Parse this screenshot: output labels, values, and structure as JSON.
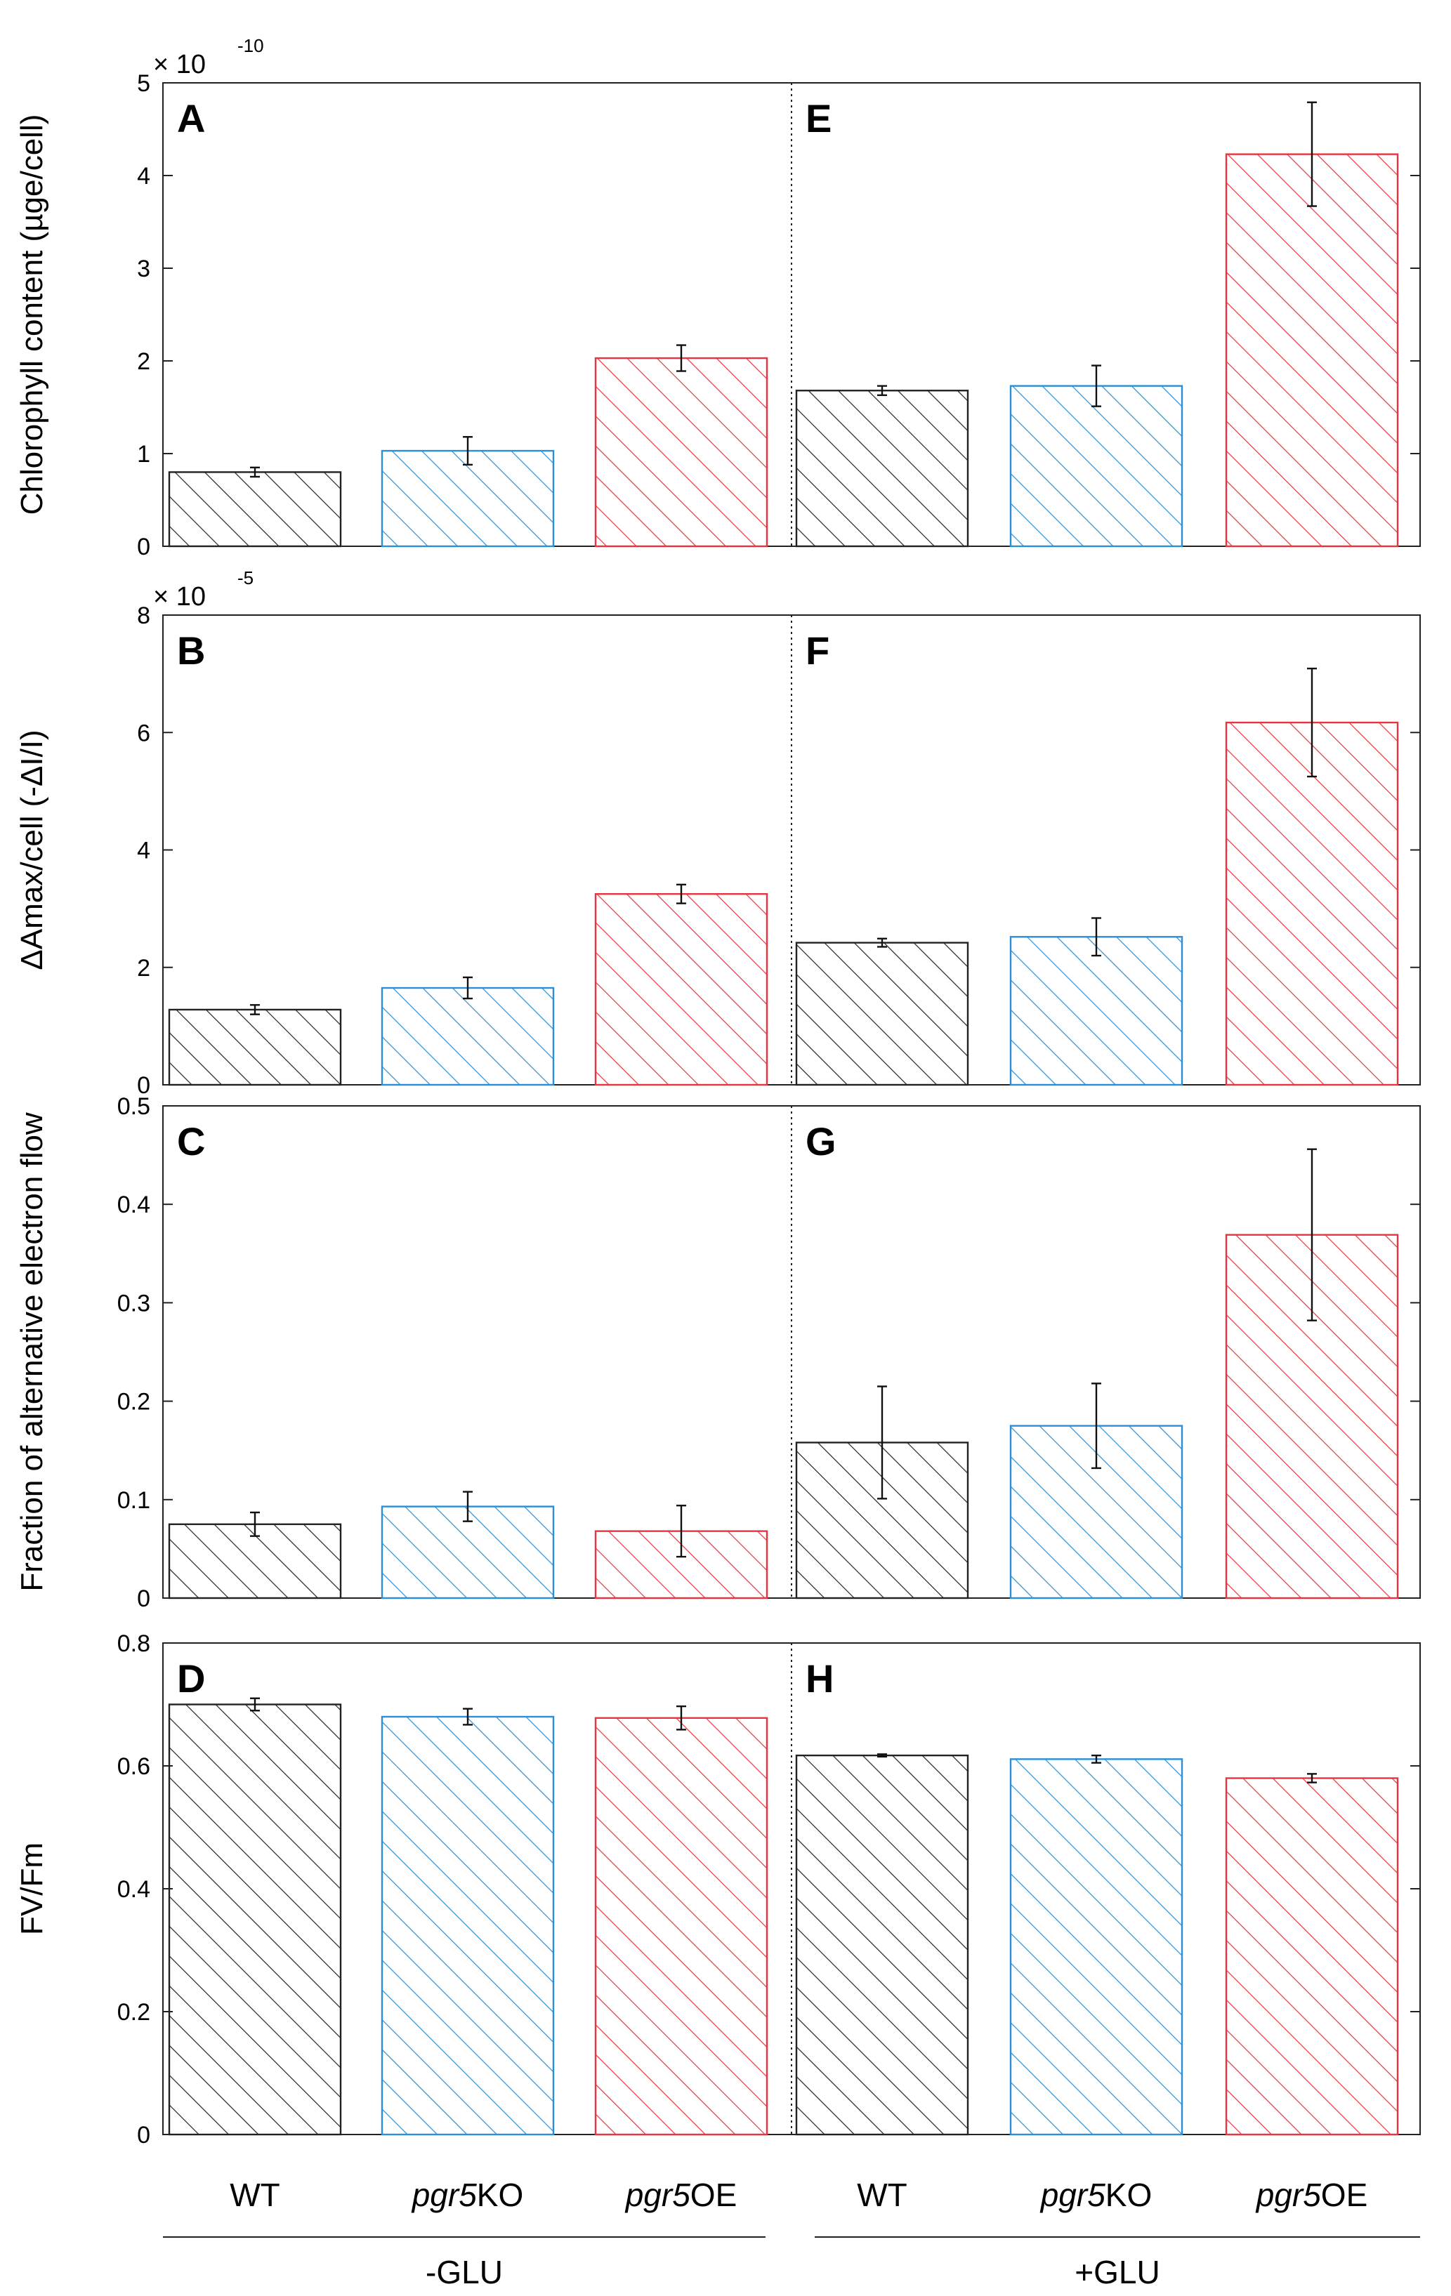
{
  "colors": {
    "WT": "#222222",
    "pgr5KO": "#2a8fd6",
    "pgr5OE": "#e8343f"
  },
  "categories": [
    {
      "prefix": "",
      "italic": "",
      "suffix": "WT"
    },
    {
      "prefix": "",
      "italic": "pgr5",
      "suffix": "KO"
    },
    {
      "prefix": "",
      "italic": "pgr5",
      "suffix": "OE"
    }
  ],
  "groups": [
    "-GLU",
    "+GLU"
  ],
  "chart_data": [
    {
      "type": "bar",
      "rows": "Chlorophyll content",
      "ylabel": "Chlorophyll content (µge/cell)",
      "multiplier_base": "× 10",
      "multiplier_exp": "-10",
      "ylim": [
        0,
        5
      ],
      "yticks": [
        0,
        1,
        2,
        3,
        4,
        5
      ],
      "panels": [
        {
          "letter": "A",
          "group": "-GLU",
          "values": [
            0.8,
            1.03,
            2.03
          ],
          "errors": [
            0.05,
            0.15,
            0.14
          ]
        },
        {
          "letter": "E",
          "group": "+GLU",
          "values": [
            1.68,
            1.73,
            4.23
          ],
          "errors": [
            0.05,
            0.22,
            0.56
          ]
        }
      ]
    },
    {
      "type": "bar",
      "ylabel": "ΔAmax/cell (-ΔI/I)",
      "multiplier_base": "× 10",
      "multiplier_exp": "-5",
      "ylim": [
        0,
        8
      ],
      "yticks": [
        0,
        2,
        4,
        6,
        8
      ],
      "panels": [
        {
          "letter": "B",
          "group": "-GLU",
          "values": [
            1.28,
            1.65,
            3.25
          ],
          "errors": [
            0.08,
            0.18,
            0.16
          ]
        },
        {
          "letter": "F",
          "group": "+GLU",
          "values": [
            2.42,
            2.52,
            6.17
          ],
          "errors": [
            0.07,
            0.32,
            0.92
          ]
        }
      ]
    },
    {
      "type": "bar",
      "ylabel": "Fraction of alternative electron flow",
      "multiplier_base": "",
      "multiplier_exp": "",
      "ylim": [
        0,
        0.5
      ],
      "yticks": [
        0,
        0.1,
        0.2,
        0.3,
        0.4,
        0.5
      ],
      "panels": [
        {
          "letter": "C",
          "group": "-GLU",
          "values": [
            0.075,
            0.093,
            0.068
          ],
          "errors": [
            0.012,
            0.015,
            0.026
          ]
        },
        {
          "letter": "G",
          "group": "+GLU",
          "values": [
            0.158,
            0.175,
            0.369
          ],
          "errors": [
            0.057,
            0.043,
            0.087
          ]
        }
      ]
    },
    {
      "type": "bar",
      "ylabel": "FV/Fm",
      "multiplier_base": "",
      "multiplier_exp": "",
      "ylim": [
        0,
        0.8
      ],
      "yticks": [
        0,
        0.2,
        0.4,
        0.6,
        0.8
      ],
      "panels": [
        {
          "letter": "D",
          "group": "-GLU",
          "values": [
            0.7,
            0.68,
            0.678
          ],
          "errors": [
            0.01,
            0.013,
            0.019
          ]
        },
        {
          "letter": "H",
          "group": "+GLU",
          "values": [
            0.617,
            0.611,
            0.58
          ],
          "errors": [
            0.002,
            0.006,
            0.007
          ]
        }
      ]
    }
  ]
}
